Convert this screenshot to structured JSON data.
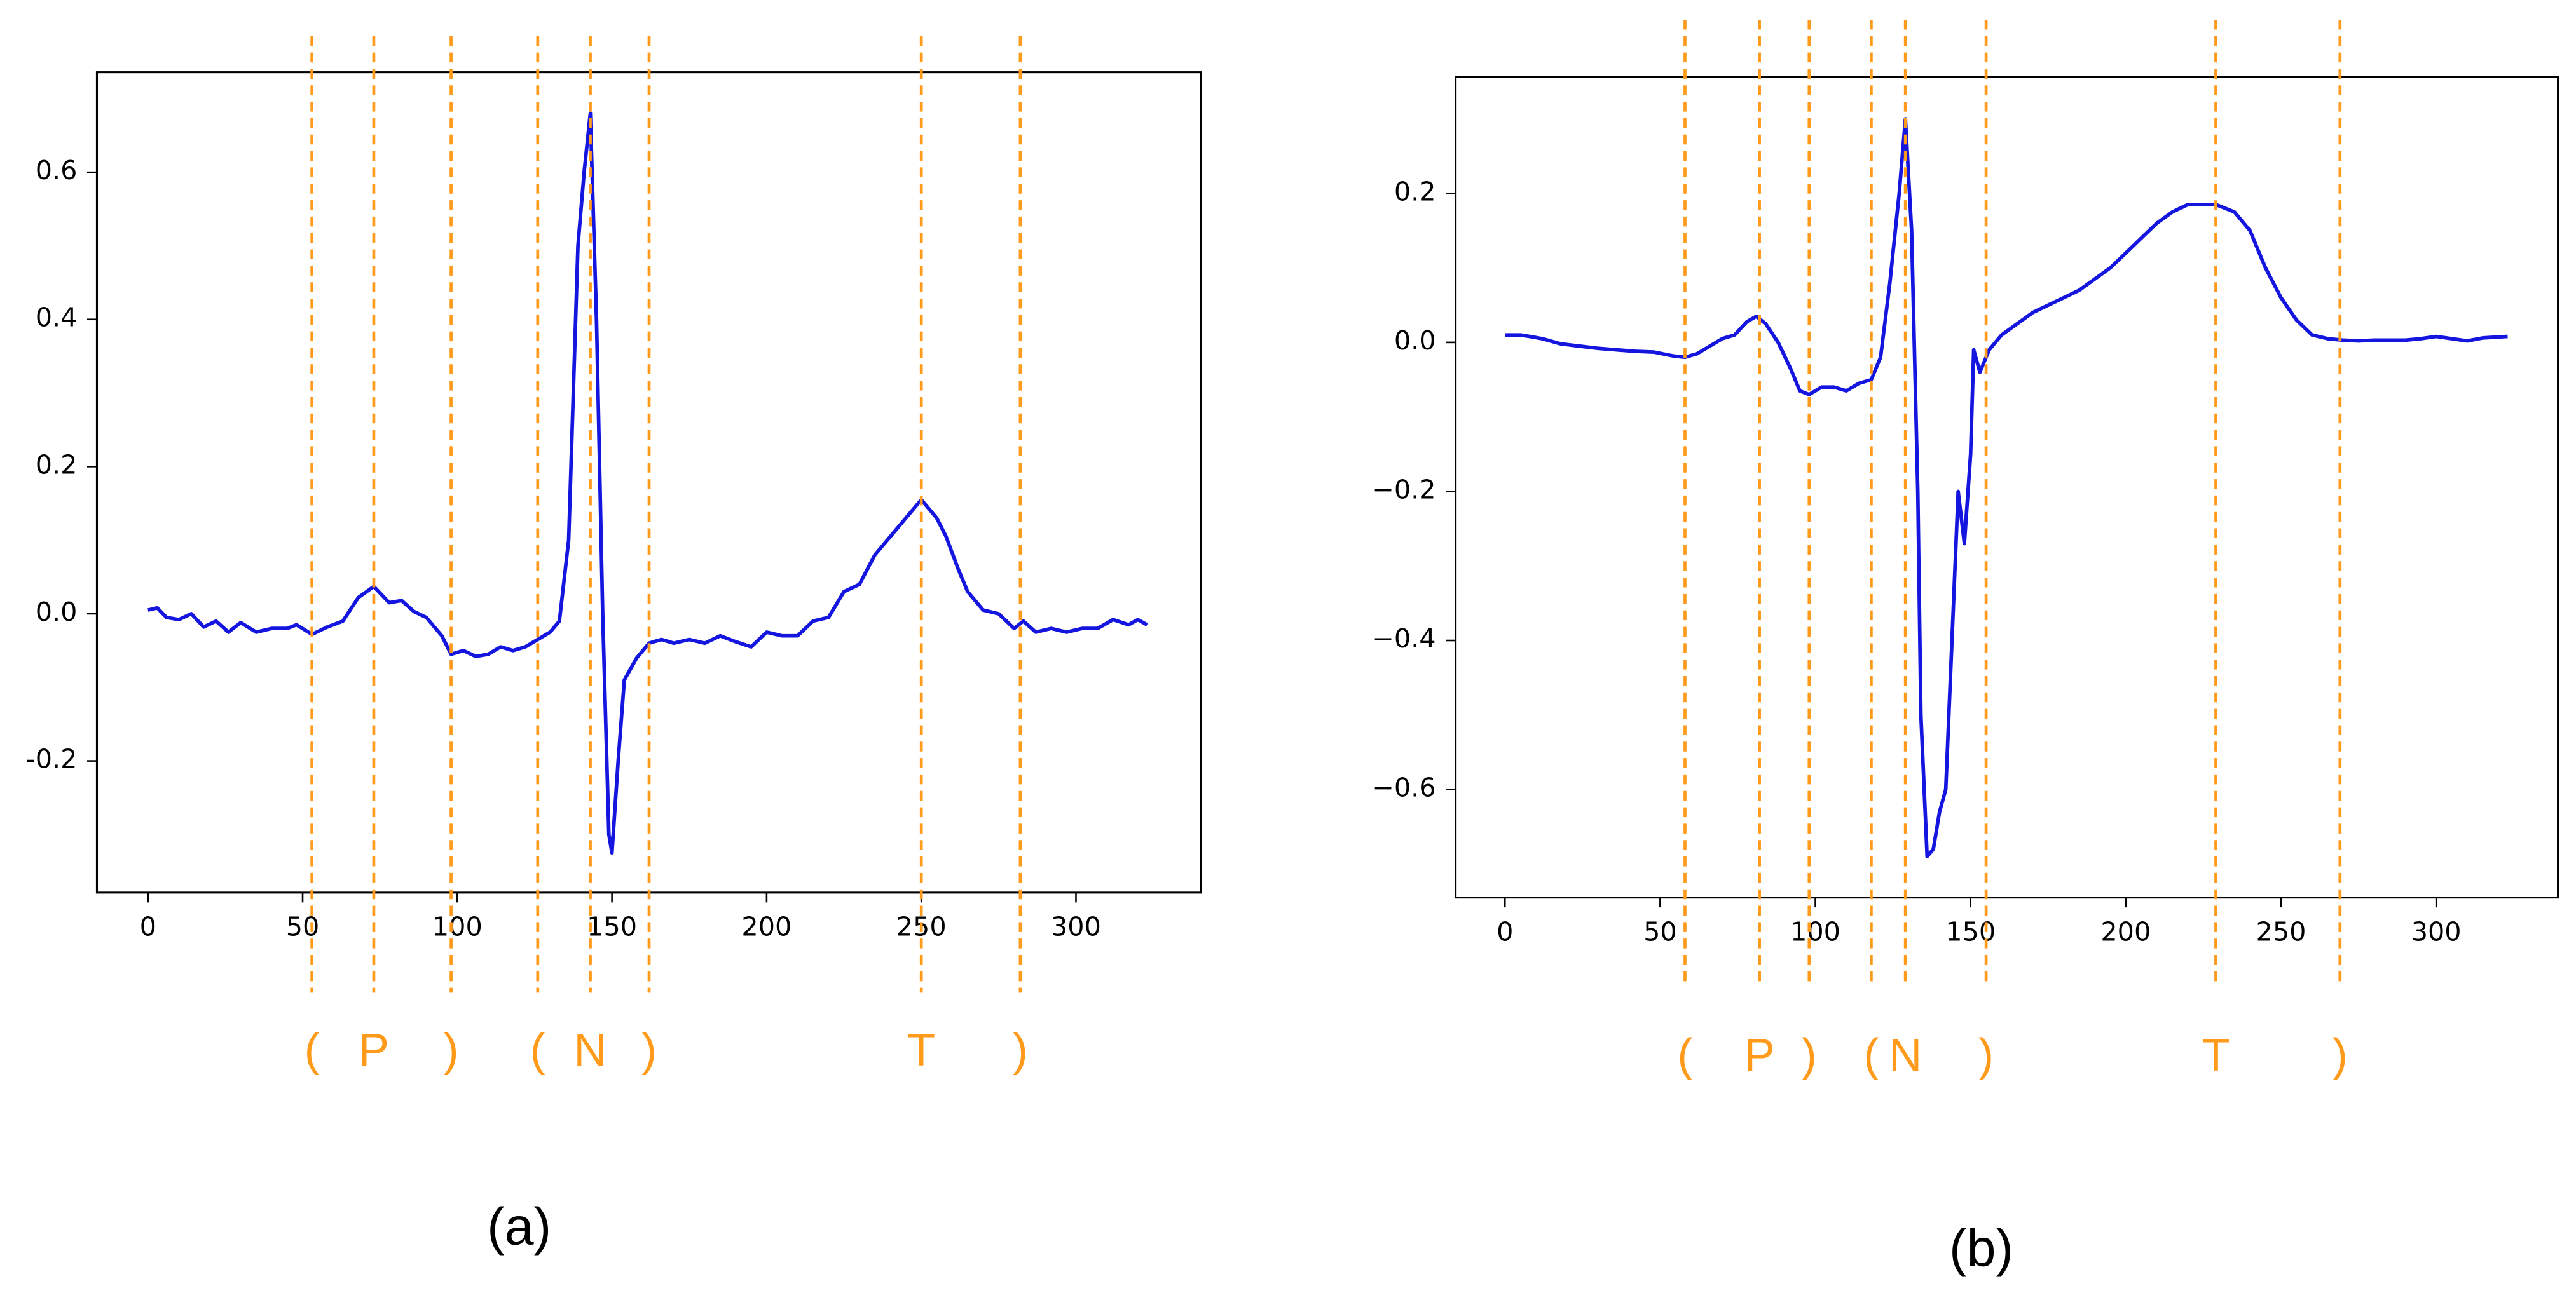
{
  "chart_data": [
    {
      "type": "line",
      "caption": "(a)",
      "x": [
        0,
        3,
        6,
        10,
        14,
        18,
        22,
        26,
        30,
        35,
        40,
        45,
        48,
        53,
        58,
        63,
        68,
        73,
        78,
        82,
        86,
        90,
        95,
        98,
        102,
        106,
        110,
        114,
        118,
        122,
        126,
        130,
        133,
        136,
        139,
        141,
        143,
        145,
        147,
        149,
        150,
        152,
        154,
        158,
        162,
        166,
        170,
        175,
        180,
        185,
        190,
        195,
        200,
        205,
        210,
        215,
        220,
        225,
        230,
        235,
        240,
        245,
        250,
        255,
        258,
        262,
        265,
        270,
        275,
        280,
        283,
        287,
        292,
        297,
        302,
        307,
        312,
        317,
        320,
        323
      ],
      "values": [
        0.005,
        0.008,
        -0.005,
        -0.008,
        0,
        -0.018,
        -0.01,
        -0.025,
        -0.012,
        -0.025,
        -0.02,
        -0.02,
        -0.015,
        -0.028,
        -0.018,
        -0.01,
        0.022,
        0.037,
        0.015,
        0.018,
        0.003,
        -0.005,
        -0.03,
        -0.055,
        -0.05,
        -0.058,
        -0.055,
        -0.045,
        -0.05,
        -0.045,
        -0.035,
        -0.025,
        -0.01,
        0.1,
        0.5,
        0.6,
        0.68,
        0.4,
        0.0,
        -0.3,
        -0.325,
        -0.2,
        -0.09,
        -0.06,
        -0.04,
        -0.035,
        -0.04,
        -0.035,
        -0.04,
        -0.03,
        -0.038,
        -0.045,
        -0.025,
        -0.03,
        -0.03,
        -0.01,
        -0.005,
        0.03,
        0.04,
        0.08,
        0.105,
        0.13,
        0.155,
        0.13,
        0.105,
        0.06,
        0.03,
        0.005,
        0.0,
        -0.02,
        -0.01,
        -0.025,
        -0.02,
        -0.025,
        -0.02,
        -0.02,
        -0.008,
        -0.015,
        -0.008,
        -0.015
      ],
      "color": "#1515e0",
      "xlim": [
        -16.5,
        340.4
      ],
      "ylim": [
        -0.379,
        0.736
      ],
      "xticks": [
        0,
        50,
        100,
        150,
        200,
        250,
        300
      ],
      "yticks": [
        -0.2,
        {
          "value": 0,
          "label": "0.0"
        },
        0.2,
        0.4,
        0.6
      ],
      "vlines": {
        "color": "#ff9a1a",
        "x": [
          53,
          73,
          98,
          126,
          143,
          162,
          250,
          282
        ],
        "labels": [
          "(",
          "P",
          ")",
          "(",
          "N",
          ")",
          "T",
          ")"
        ]
      }
    },
    {
      "type": "line",
      "caption": "(b)",
      "x": [
        0,
        5,
        8,
        12,
        18,
        24,
        30,
        36,
        42,
        48,
        54,
        58,
        62,
        66,
        70,
        74,
        78,
        81,
        84,
        88,
        92,
        95,
        98,
        102,
        106,
        110,
        114,
        118,
        121,
        124,
        127,
        129,
        131,
        133,
        134,
        136,
        138,
        140,
        142,
        144,
        146,
        148,
        150,
        151,
        153,
        156,
        160,
        165,
        170,
        175,
        180,
        185,
        190,
        195,
        200,
        205,
        210,
        215,
        220,
        229,
        235,
        240,
        245,
        250,
        255,
        260,
        265,
        270,
        275,
        280,
        290,
        295,
        300,
        305,
        310,
        315,
        323
      ],
      "values": [
        0.01,
        0.01,
        0.008,
        0.005,
        -0.002,
        -0.005,
        -0.008,
        -0.01,
        -0.012,
        -0.013,
        -0.018,
        -0.02,
        -0.015,
        -0.005,
        0.005,
        0.01,
        0.028,
        0.035,
        0.025,
        0.0,
        -0.035,
        -0.065,
        -0.07,
        -0.06,
        -0.06,
        -0.065,
        -0.055,
        -0.05,
        -0.02,
        0.08,
        0.2,
        0.3,
        0.15,
        -0.2,
        -0.5,
        -0.69,
        -0.68,
        -0.63,
        -0.6,
        -0.4,
        -0.2,
        -0.27,
        -0.15,
        -0.01,
        -0.04,
        -0.01,
        0.01,
        0.025,
        0.04,
        0.05,
        0.06,
        0.07,
        0.085,
        0.1,
        0.12,
        0.14,
        0.16,
        0.175,
        0.185,
        0.185,
        0.175,
        0.15,
        0.1,
        0.06,
        0.03,
        0.01,
        0.005,
        0.003,
        0.002,
        0.003,
        0.003,
        0.005,
        0.008,
        0.005,
        0.002,
        0.006,
        0.008
      ],
      "color": "#1515e0",
      "xlim": [
        -15.9,
        339.2
      ],
      "ylim": [
        -0.745,
        0.356
      ],
      "xticks": [
        0,
        50,
        100,
        150,
        200,
        250,
        300
      ],
      "yticks": [
        {
          "value": -0.6,
          "label": "−0.6"
        },
        {
          "value": -0.4,
          "label": "−0.4"
        },
        {
          "value": -0.2,
          "label": "−0.2"
        },
        {
          "value": 0,
          "label": "0.0"
        },
        0.2
      ],
      "vlines": {
        "color": "#ff9a1a",
        "x": [
          58,
          82,
          98,
          118,
          129,
          155,
          229,
          269
        ],
        "labels": [
          "(",
          "P",
          ")",
          "(",
          "N",
          ")",
          "T",
          ")"
        ]
      }
    }
  ]
}
